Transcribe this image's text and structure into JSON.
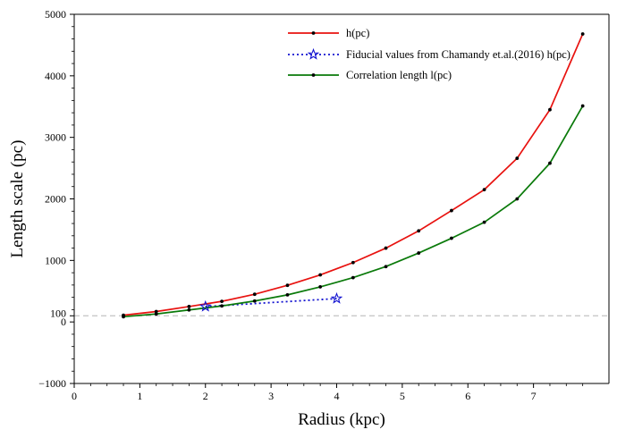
{
  "chart_data": {
    "type": "line",
    "xlabel": "Radius (kpc)",
    "ylabel": "Length scale (pc)",
    "xlim": [
      0,
      8.15
    ],
    "ylim": [
      -1000,
      5000
    ],
    "xticks": [
      0,
      1,
      2,
      3,
      4,
      5,
      6,
      7
    ],
    "xtick_labels": [
      "0",
      "1",
      "2",
      "3",
      "4",
      "5",
      "6",
      "7"
    ],
    "yticks": [
      -1000,
      0,
      1000,
      2000,
      3000,
      4000,
      5000
    ],
    "ytick_labels": [
      "−1000",
      "0",
      "1000",
      "2000",
      "3000",
      "4000",
      "5000"
    ],
    "reference_line": {
      "y": 100,
      "label": "100",
      "color": "#c8c8c8",
      "style": "dashed"
    },
    "legend_placement": "top-center",
    "series": [
      {
        "name": " h(pc)",
        "color": "#e8120f",
        "marker": "dot",
        "line": "solid",
        "x": [
          0.75,
          1.25,
          1.75,
          2.25,
          2.75,
          3.25,
          3.75,
          4.25,
          4.75,
          5.25,
          5.75,
          6.25,
          6.75,
          7.25,
          7.75
        ],
        "y": [
          110,
          170,
          250,
          335,
          450,
          595,
          765,
          965,
          1200,
          1480,
          1810,
          2150,
          2660,
          3450,
          4680
        ]
      },
      {
        "name": "Fiducial values from Chamandy et.al.(2016) h(pc)",
        "color": "#1010d0",
        "marker": "star",
        "line": "dotted",
        "x": [
          2.0,
          4.0
        ],
        "y": [
          250,
          380
        ]
      },
      {
        "name": "Correlation length l(pc)",
        "color": "#0a7a0a",
        "marker": "dot",
        "line": "solid",
        "x": [
          0.75,
          1.25,
          1.75,
          2.25,
          2.75,
          3.25,
          3.75,
          4.25,
          4.75,
          5.25,
          5.75,
          6.25,
          6.75,
          7.25,
          7.75
        ],
        "y": [
          85,
          130,
          195,
          260,
          340,
          440,
          570,
          720,
          900,
          1120,
          1360,
          1620,
          2000,
          2580,
          3510
        ]
      }
    ]
  }
}
